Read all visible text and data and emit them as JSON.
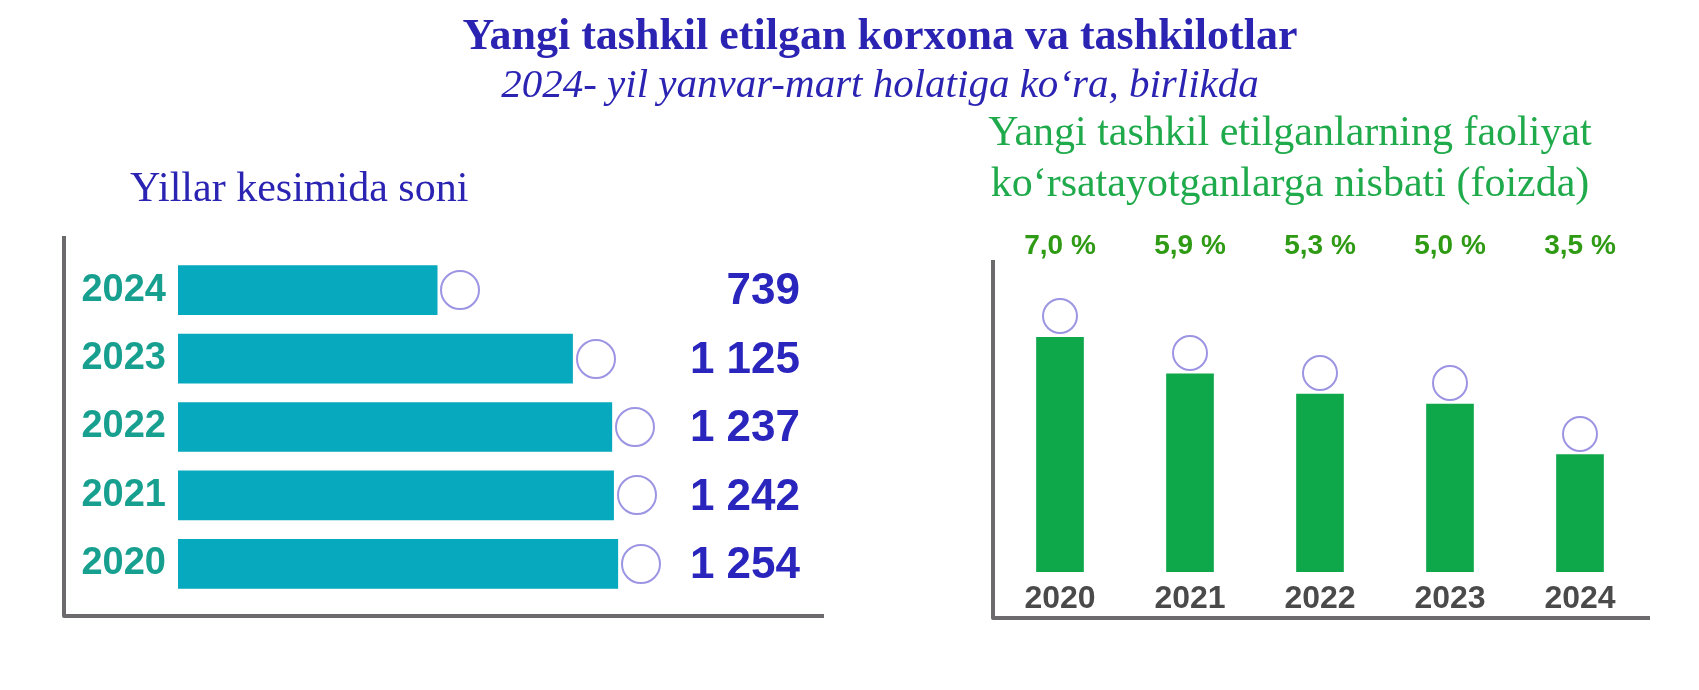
{
  "chart_data": [
    {
      "type": "other",
      "title": "Yangi tashkil etilgan korxona va tashkilotlar",
      "subtitle": "2024- yil yanvar-mart holatiga ko‘ra, birlikda"
    },
    {
      "type": "bar",
      "title": "Yillar kesimida soni",
      "orientation": "horizontal",
      "categories": [
        "2024",
        "2023",
        "2022",
        "2021",
        "2020"
      ],
      "values": [
        739,
        1125,
        1237,
        1242,
        1254
      ],
      "value_labels": [
        "739",
        "1 125",
        "1 237",
        "1 242",
        "1 254"
      ],
      "color": "#06a9bd",
      "tick_labels": "y"
    },
    {
      "type": "bar",
      "title": "Yangi tashkil etilganlarning faoliyat ko‘rsatayotganlarga nisbati (foizda)",
      "categories": [
        "2020",
        "2021",
        "2022",
        "2023",
        "2024"
      ],
      "values": [
        7.0,
        5.9,
        5.3,
        5.0,
        3.5
      ],
      "value_labels": [
        "7,0 %",
        "5,9 %",
        "5,3 %",
        "5,0 %",
        "3,5 %"
      ],
      "color": "#0ea84a",
      "tick_labels": "x"
    }
  ]
}
